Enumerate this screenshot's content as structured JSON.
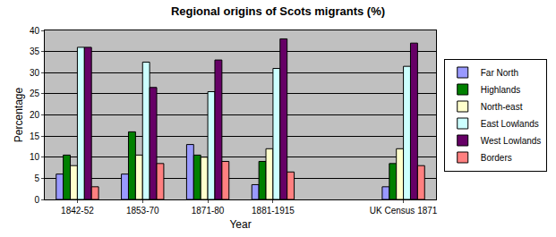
{
  "chart_data": {
    "type": "bar",
    "title": "Regional origins of Scots migrants (%)",
    "x_label": "Year",
    "y_label": "Percentage",
    "categories": [
      "1842-52",
      "1853-70",
      "1871-80",
      "1881-1915",
      null,
      "UK Census 1871"
    ],
    "series": [
      {
        "name": "Far North",
        "color": "#9999FF",
        "values": [
          6,
          6,
          13,
          3.5,
          null,
          3
        ]
      },
      {
        "name": "Highlands",
        "color": "#008000",
        "values": [
          10.5,
          16,
          10.5,
          9,
          null,
          8.5
        ]
      },
      {
        "name": "North-east",
        "color": "#FFFFCC",
        "values": [
          8,
          10.5,
          10,
          12,
          null,
          12
        ]
      },
      {
        "name": "East Lowlands",
        "color": "#CCFFFF",
        "values": [
          36,
          32.5,
          25.5,
          31,
          null,
          31.5
        ]
      },
      {
        "name": "West Lowlands",
        "color": "#660066",
        "values": [
          36,
          26.5,
          33,
          38,
          null,
          37
        ]
      },
      {
        "name": "Borders",
        "color": "#FF8080",
        "values": [
          3,
          8.5,
          9,
          6.5,
          null,
          8
        ]
      }
    ],
    "ylim": [
      0,
      40
    ],
    "yticks": [
      0,
      5,
      10,
      15,
      20,
      25,
      30,
      35,
      40
    ],
    "grid": true,
    "legend": "right"
  }
}
